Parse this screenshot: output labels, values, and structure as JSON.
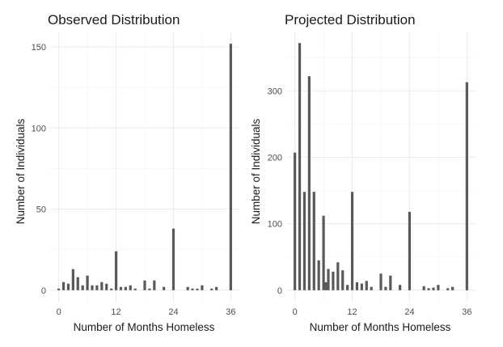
{
  "chart_data": [
    {
      "type": "bar",
      "title": "Observed Distribution",
      "xlabel": "Number of Months Homeless",
      "ylabel": "Number of Individuals",
      "xlim": [
        -1.8,
        37.8
      ],
      "ylim": [
        -7.6,
        159
      ],
      "x_ticks": [
        0,
        12,
        24,
        36
      ],
      "y_ticks": [
        0,
        50,
        100,
        150
      ],
      "y_minor": [
        25,
        75,
        125
      ],
      "grid": true,
      "bar_color": "#595959",
      "points": [
        {
          "x": 0,
          "y": 1
        },
        {
          "x": 1,
          "y": 5
        },
        {
          "x": 2,
          "y": 4
        },
        {
          "x": 3,
          "y": 13
        },
        {
          "x": 4,
          "y": 8
        },
        {
          "x": 5,
          "y": 3
        },
        {
          "x": 6,
          "y": 9
        },
        {
          "x": 7,
          "y": 3
        },
        {
          "x": 8,
          "y": 3
        },
        {
          "x": 9,
          "y": 5
        },
        {
          "x": 10,
          "y": 4
        },
        {
          "x": 11,
          "y": 1
        },
        {
          "x": 12,
          "y": 24
        },
        {
          "x": 13,
          "y": 2
        },
        {
          "x": 14,
          "y": 2
        },
        {
          "x": 15,
          "y": 3
        },
        {
          "x": 16,
          "y": 1
        },
        {
          "x": 18,
          "y": 6
        },
        {
          "x": 19,
          "y": 1
        },
        {
          "x": 20,
          "y": 6
        },
        {
          "x": 22,
          "y": 2
        },
        {
          "x": 24,
          "y": 38
        },
        {
          "x": 27,
          "y": 2
        },
        {
          "x": 28,
          "y": 1
        },
        {
          "x": 29,
          "y": 1
        },
        {
          "x": 30,
          "y": 3
        },
        {
          "x": 32,
          "y": 1
        },
        {
          "x": 33,
          "y": 2
        },
        {
          "x": 36,
          "y": 152
        }
      ]
    },
    {
      "type": "bar",
      "title": "Projected Distribution",
      "xlabel": "Number of Months Homeless",
      "ylabel": "Number of Individuals",
      "xlim": [
        -1.8,
        37.8
      ],
      "ylim": [
        -18.5,
        388
      ],
      "x_ticks": [
        0,
        12,
        24,
        36
      ],
      "y_ticks": [
        0,
        100,
        200,
        300
      ],
      "y_minor": [
        50,
        150,
        250,
        350
      ],
      "grid": true,
      "bar_color": "#595959",
      "points": [
        {
          "x": 0,
          "y": 207
        },
        {
          "x": 1,
          "y": 372
        },
        {
          "x": 2,
          "y": 148
        },
        {
          "x": 3,
          "y": 322
        },
        {
          "x": 4,
          "y": 148
        },
        {
          "x": 5,
          "y": 45
        },
        {
          "x": 6,
          "y": 112
        },
        {
          "x": 6.5,
          "y": 12
        },
        {
          "x": 7,
          "y": 32
        },
        {
          "x": 8,
          "y": 28
        },
        {
          "x": 9,
          "y": 42
        },
        {
          "x": 10,
          "y": 30
        },
        {
          "x": 11,
          "y": 8
        },
        {
          "x": 12,
          "y": 148
        },
        {
          "x": 13,
          "y": 12
        },
        {
          "x": 14,
          "y": 10
        },
        {
          "x": 15,
          "y": 14
        },
        {
          "x": 16,
          "y": 5
        },
        {
          "x": 18,
          "y": 25
        },
        {
          "x": 19,
          "y": 5
        },
        {
          "x": 20,
          "y": 22
        },
        {
          "x": 22,
          "y": 8
        },
        {
          "x": 24,
          "y": 118
        },
        {
          "x": 27,
          "y": 6
        },
        {
          "x": 28,
          "y": 3
        },
        {
          "x": 29,
          "y": 4
        },
        {
          "x": 30,
          "y": 8
        },
        {
          "x": 32,
          "y": 3
        },
        {
          "x": 33,
          "y": 5
        },
        {
          "x": 36,
          "y": 313
        }
      ]
    }
  ]
}
